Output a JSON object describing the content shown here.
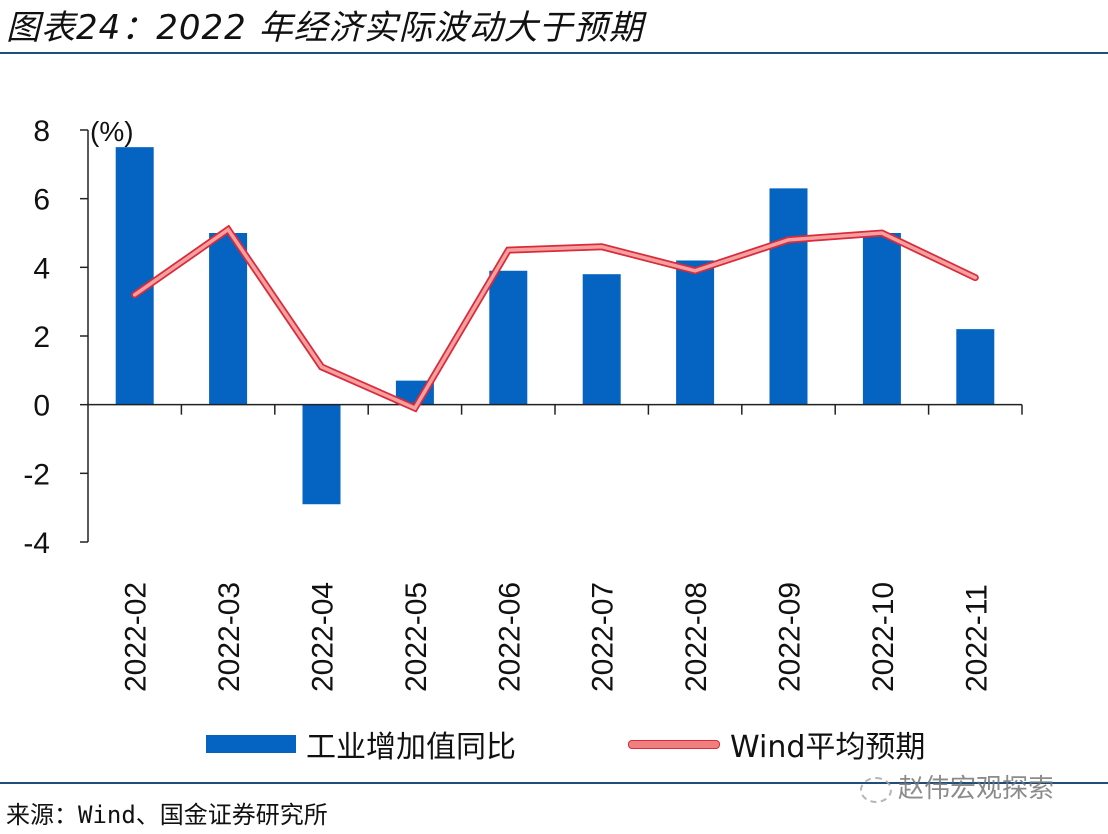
{
  "title": "图表24：2022 年经济实际波动大于预期",
  "source": "来源：Wind、国金证券研究所",
  "watermark": "赵伟宏观探索",
  "colors": {
    "bar": "#0563c1",
    "line": "#d92b3a",
    "line_fill": "#f4a0a0",
    "rule": "#1f4e79"
  },
  "chart_data": {
    "type": "bar",
    "title": "2022 年经济实际波动大于预期",
    "unit_label": "(%)",
    "xlabel": "",
    "ylabel": "(%)",
    "ylim": [
      -4,
      8
    ],
    "yticks": [
      8,
      6,
      4,
      2,
      0,
      -2,
      -4
    ],
    "ytick_labels": [
      "8",
      "6",
      "4",
      "2",
      "0",
      "-2",
      "-4"
    ],
    "categories": [
      "2022-02",
      "2022-03",
      "2022-04",
      "2022-05",
      "2022-06",
      "2022-07",
      "2022-08",
      "2022-09",
      "2022-10",
      "2022-11"
    ],
    "series": [
      {
        "name": "工业增加值同比",
        "type": "bar",
        "values": [
          7.5,
          5.0,
          -2.9,
          0.7,
          3.9,
          3.8,
          4.2,
          6.3,
          5.0,
          2.2
        ]
      },
      {
        "name": "Wind平均预期",
        "type": "line",
        "values": [
          3.2,
          5.1,
          1.1,
          -0.1,
          4.5,
          4.6,
          3.9,
          4.8,
          5.0,
          3.7
        ]
      }
    ],
    "grid": false,
    "legend": "bottom"
  }
}
